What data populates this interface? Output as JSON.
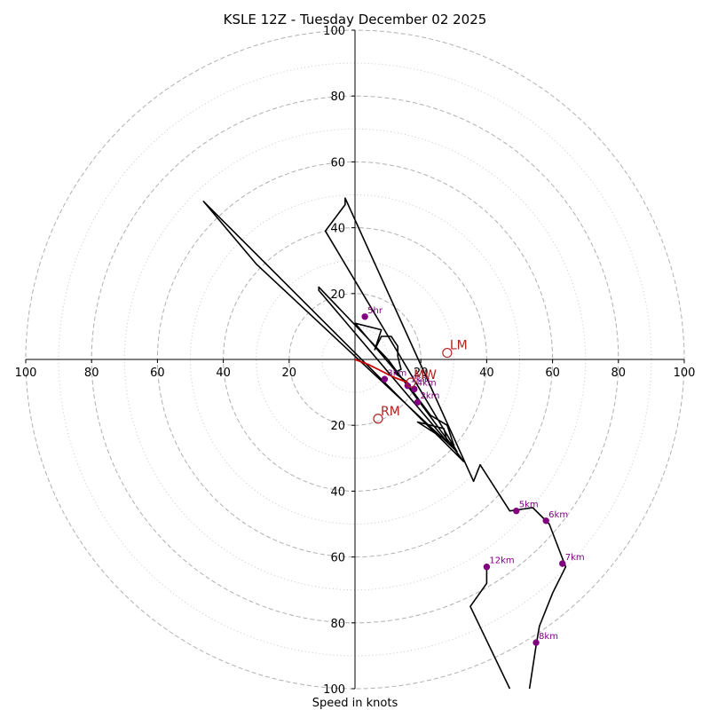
{
  "chart_data": {
    "type": "hodograph",
    "title": "KSLE 12Z - Tuesday December 02 2025",
    "xlabel": "Speed in knots",
    "xlim": [
      -100,
      100
    ],
    "ylim": [
      -100,
      100
    ],
    "rings_major": [
      20,
      40,
      60,
      80,
      100
    ],
    "rings_minor": [
      10,
      30,
      50,
      70,
      90
    ],
    "x_ticks": [
      {
        "value": -100,
        "label": "100"
      },
      {
        "value": -80,
        "label": "80"
      },
      {
        "value": -60,
        "label": "60"
      },
      {
        "value": -40,
        "label": "40"
      },
      {
        "value": -20,
        "label": "20"
      },
      {
        "value": 20,
        "label": "20"
      },
      {
        "value": 40,
        "label": "40"
      },
      {
        "value": 60,
        "label": "60"
      },
      {
        "value": 80,
        "label": "80"
      },
      {
        "value": 100,
        "label": "100"
      }
    ],
    "y_ticks": [
      {
        "value": 100,
        "label": "100"
      },
      {
        "value": 80,
        "label": "80"
      },
      {
        "value": 60,
        "label": "60"
      },
      {
        "value": 40,
        "label": "40"
      },
      {
        "value": 20,
        "label": "20"
      },
      {
        "value": -20,
        "label": "20"
      },
      {
        "value": -40,
        "label": "40"
      },
      {
        "value": -60,
        "label": "60"
      },
      {
        "value": -80,
        "label": "80"
      },
      {
        "value": -100,
        "label": "100"
      }
    ],
    "low_level_trace": {
      "color": "#cc0000",
      "points": [
        [
          0,
          0
        ],
        [
          4,
          -1.5
        ],
        [
          8,
          -3.5
        ],
        [
          12,
          -5.5
        ],
        [
          16,
          -7
        ]
      ]
    },
    "hodograph_trace": {
      "color": "#000000",
      "points": [
        [
          16,
          -7
        ],
        [
          12,
          -4
        ],
        [
          14,
          -3
        ],
        [
          13,
          1
        ],
        [
          13,
          4
        ],
        [
          11,
          7
        ],
        [
          8,
          7
        ],
        [
          6,
          3
        ],
        [
          8,
          9
        ],
        [
          0,
          11
        ],
        [
          17,
          -9
        ],
        [
          23,
          -17
        ],
        [
          28,
          -20
        ],
        [
          30,
          -26
        ],
        [
          19,
          -19
        ],
        [
          27,
          -21
        ],
        [
          28,
          -25
        ],
        [
          -11,
          21
        ],
        [
          -11,
          22
        ],
        [
          10,
          0
        ],
        [
          33,
          -31
        ],
        [
          -46,
          48
        ],
        [
          -30,
          29
        ],
        [
          31,
          -28
        ],
        [
          -9,
          39
        ],
        [
          -3,
          47
        ],
        [
          -3,
          48
        ],
        [
          -3,
          49
        ],
        [
          36,
          -37
        ],
        [
          38,
          -32
        ],
        [
          47,
          -46
        ],
        [
          54,
          -45
        ],
        [
          59,
          -50
        ],
        [
          64,
          -63
        ],
        [
          60,
          -71
        ],
        [
          56,
          -81
        ],
        [
          55,
          -87
        ],
        [
          53,
          -100
        ]
      ]
    },
    "hodograph_trace_2": {
      "color": "#000000",
      "points": [
        [
          47,
          -100
        ],
        [
          35,
          -75
        ],
        [
          40,
          -68
        ],
        [
          40,
          -62
        ]
      ]
    },
    "height_markers": [
      {
        "label": "1km",
        "u": 16,
        "v": -8
      },
      {
        "label": "2km",
        "u": 19,
        "v": -13
      },
      {
        "label": "3km",
        "u": 9,
        "v": -6
      },
      {
        "label": "4km",
        "u": 18,
        "v": -9
      },
      {
        "label": "5km",
        "u": 49,
        "v": -46
      },
      {
        "label": "6km",
        "u": 58,
        "v": -49
      },
      {
        "label": "7km",
        "u": 63,
        "v": -62
      },
      {
        "label": "8km",
        "u": 55,
        "v": -86
      },
      {
        "label": "12km",
        "u": 40,
        "v": -63
      },
      {
        "label": "5hr",
        "u": 3,
        "v": 13
      }
    ],
    "storm_motion": [
      {
        "label": "LM",
        "u": 28,
        "v": 2
      },
      {
        "label": "RM",
        "u": 7,
        "v": -18
      },
      {
        "label": "MW",
        "u": 17,
        "v": -7
      }
    ],
    "colors": {
      "ring": "#b0b0b0",
      "axis": "#000000",
      "marker": "#800080",
      "storm": "#b22222",
      "low_level": "#cc0000"
    }
  }
}
